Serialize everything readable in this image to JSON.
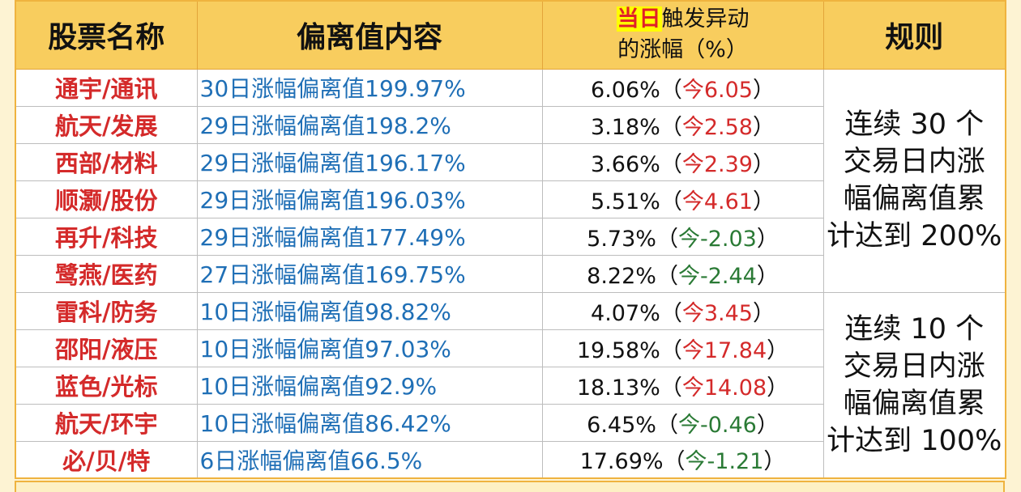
{
  "header": {
    "stock_name": "股票名称",
    "deviation": "偏离值内容",
    "change_highlight": "当日",
    "change_line1_rest": "触发异动",
    "change_line2": "的涨幅（%）",
    "rule": "规则"
  },
  "punctuation": {
    "open": "（",
    "close": "）"
  },
  "groups": [
    {
      "rule_lines": [
        "连续 30 个",
        "交易日内涨",
        "幅偏离值累",
        "计达到 200%"
      ],
      "stocks": [
        {
          "name": "通宇/通讯",
          "deviation": "30日涨幅偏离值199.97%",
          "trigger_change": "6.06%",
          "today": "今6.05"
        },
        {
          "name": "航天/发展",
          "deviation": "29日涨幅偏离值198.2%",
          "trigger_change": "3.18%",
          "today": "今2.58"
        },
        {
          "name": "西部/材料",
          "deviation": "29日涨幅偏离值196.17%",
          "trigger_change": "3.66%",
          "today": "今2.39"
        },
        {
          "name": "顺灏/股份",
          "deviation": "29日涨幅偏离值196.03%",
          "trigger_change": "5.51%",
          "today": "今4.61"
        },
        {
          "name": "再升/科技",
          "deviation": "29日涨幅偏离值177.49%",
          "trigger_change": "5.73%",
          "today": "今-2.03"
        },
        {
          "name": "鹭燕/医药",
          "deviation": "27日涨幅偏离值169.75%",
          "trigger_change": "8.22%",
          "today": "今-2.44"
        }
      ]
    },
    {
      "rule_lines": [
        "连续 10 个",
        "交易日内涨",
        "幅偏离值累",
        "计达到 100%"
      ],
      "stocks": [
        {
          "name": "雷科/防务",
          "deviation": "10日涨幅偏离值98.82%",
          "trigger_change": "4.07%",
          "today": "今3.45"
        },
        {
          "name": "邵阳/液压",
          "deviation": "10日涨幅偏离值97.03%",
          "trigger_change": "19.58%",
          "today": "今17.84"
        },
        {
          "name": "蓝色/光标",
          "deviation": "10日涨幅偏离值92.9%",
          "trigger_change": "18.13%",
          "today": "今14.08"
        },
        {
          "name": "航天/环宇",
          "deviation": "10日涨幅偏离值86.42%",
          "trigger_change": "6.45%",
          "today": "今-0.46"
        },
        {
          "name": "必/贝/特",
          "deviation": "6日涨幅偏离值66.5%",
          "trigger_change": "17.69%",
          "today": "今-1.21"
        }
      ]
    }
  ],
  "colors": {
    "header_bg": "#f8cd5e",
    "highlight_bg": "#ffff00",
    "stock_name": "#d42a2a",
    "deviation": "#1f6fb6",
    "today_up": "#d42a2a",
    "today_down": "#2a7a35",
    "page_bg": "#fdf3d3"
  }
}
